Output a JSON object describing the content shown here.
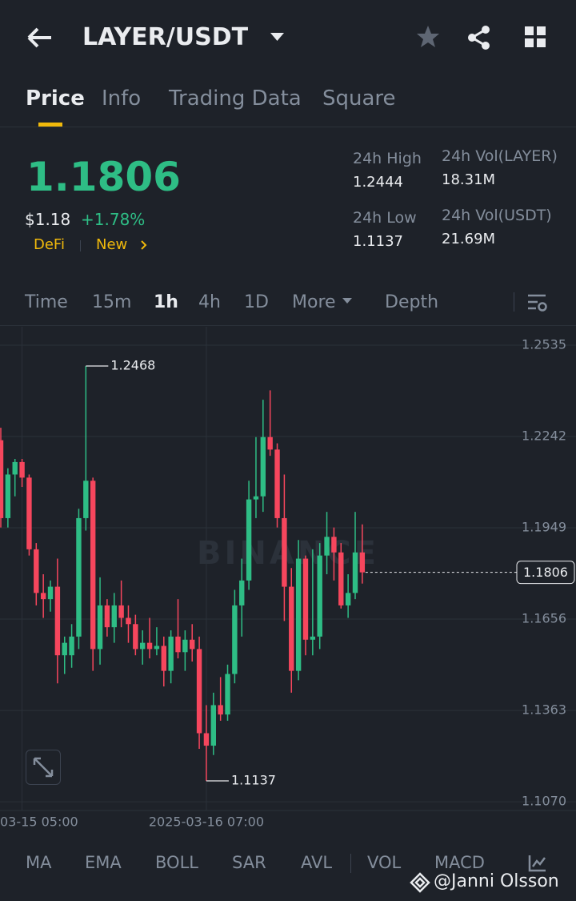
{
  "header": {
    "pair": "LAYER/USDT"
  },
  "tabs": [
    "Price",
    "Info",
    "Trading Data",
    "Square"
  ],
  "price": {
    "last": "1.1806",
    "fiat": "$1.18",
    "change": "+1.78%",
    "tags": [
      "DeFi",
      "New"
    ]
  },
  "stats": [
    {
      "label": "24h High",
      "value": "1.2444"
    },
    {
      "label": "24h Low",
      "value": "1.1137"
    },
    {
      "label": "24h Vol(LAYER)",
      "value": "18.31M"
    },
    {
      "label": "24h Vol(USDT)",
      "value": "21.69M"
    }
  ],
  "intervals": [
    "Time",
    "15m",
    "1h",
    "4h",
    "1D",
    "More",
    "Depth"
  ],
  "indicators": [
    "MA",
    "EMA",
    "BOLL",
    "SAR",
    "AVL",
    "VOL",
    "MACD"
  ],
  "chart_watermark": "BINANCE",
  "watermark": "@Janni Olsson",
  "chart_data": {
    "type": "candlestick",
    "categories": [
      null,
      null,
      null,
      "03-15 05:00",
      null,
      null,
      null,
      null,
      null,
      null,
      null,
      null,
      null,
      null,
      null,
      null,
      null,
      null,
      null,
      null,
      null,
      null,
      null,
      null,
      null,
      null,
      null,
      null,
      null,
      "2025-03-16 07:00",
      null,
      null,
      null,
      null,
      null,
      null,
      null,
      null,
      null,
      null,
      null,
      null,
      null,
      null,
      null,
      null,
      null,
      null,
      null,
      null,
      null,
      null
    ],
    "open": [
      1.223,
      1.198,
      1.212,
      1.216,
      1.211,
      1.188,
      1.174,
      1.172,
      1.176,
      1.154,
      1.154,
      1.16,
      1.198,
      1.21,
      1.156,
      1.17,
      1.163,
      1.17,
      1.166,
      1.164,
      1.156,
      1.158,
      1.156,
      1.157,
      1.149,
      1.16,
      1.155,
      1.159,
      1.156,
      1.129,
      1.125,
      1.138,
      1.135,
      1.148,
      1.17,
      1.178,
      1.204,
      1.205,
      1.224,
      1.22,
      1.198,
      1.176,
      1.149,
      1.185,
      1.159,
      1.16,
      1.186,
      1.192,
      1.187,
      1.17,
      1.174,
      1.187
    ],
    "high": [
      1.227,
      1.214,
      1.217,
      1.217,
      1.212,
      1.19,
      1.18,
      1.178,
      1.185,
      1.16,
      1.164,
      1.201,
      1.2468,
      1.211,
      1.179,
      1.172,
      1.174,
      1.178,
      1.17,
      1.167,
      1.162,
      1.166,
      1.163,
      1.16,
      1.162,
      1.172,
      1.162,
      1.164,
      1.16,
      1.138,
      1.142,
      1.147,
      1.151,
      1.175,
      1.185,
      1.21,
      1.224,
      1.236,
      1.239,
      1.222,
      1.212,
      1.182,
      1.191,
      1.186,
      1.188,
      1.19,
      1.2,
      1.195,
      1.19,
      1.18,
      1.2,
      1.196
    ],
    "low": [
      1.195,
      1.195,
      1.205,
      1.208,
      1.186,
      1.17,
      1.166,
      1.168,
      1.145,
      1.148,
      1.15,
      1.156,
      1.194,
      1.149,
      1.151,
      1.16,
      1.158,
      1.163,
      1.158,
      1.154,
      1.151,
      1.153,
      1.154,
      1.144,
      1.145,
      1.153,
      1.149,
      1.152,
      1.124,
      1.1137,
      1.122,
      1.133,
      1.133,
      1.145,
      1.16,
      1.175,
      1.198,
      1.2,
      1.218,
      1.195,
      1.165,
      1.142,
      1.146,
      1.154,
      1.154,
      1.156,
      1.18,
      1.178,
      1.169,
      1.166,
      1.172,
      1.177
    ],
    "close": [
      1.198,
      1.212,
      1.216,
      1.211,
      1.188,
      1.174,
      1.172,
      1.176,
      1.154,
      1.158,
      1.16,
      1.198,
      1.21,
      1.156,
      1.17,
      1.163,
      1.17,
      1.166,
      1.164,
      1.156,
      1.158,
      1.156,
      1.157,
      1.149,
      1.16,
      1.155,
      1.159,
      1.156,
      1.129,
      1.125,
      1.138,
      1.135,
      1.148,
      1.17,
      1.178,
      1.204,
      1.205,
      1.224,
      1.22,
      1.198,
      1.176,
      1.149,
      1.185,
      1.159,
      1.16,
      1.186,
      1.192,
      1.187,
      1.17,
      1.174,
      1.187,
      1.1806
    ],
    "up_color": "#2ebd85",
    "down_color": "#f6465d",
    "ylim": [
      1.1042,
      1.2594
    ],
    "yticks": [
      1.2535,
      1.2242,
      1.1949,
      1.1656,
      1.1363,
      {
        "value": 1.107,
        "label": "1.1070"
      }
    ],
    "grid": true,
    "high_marker": 1.2468,
    "low_marker": 1.1137,
    "last_price": 1.1806
  }
}
